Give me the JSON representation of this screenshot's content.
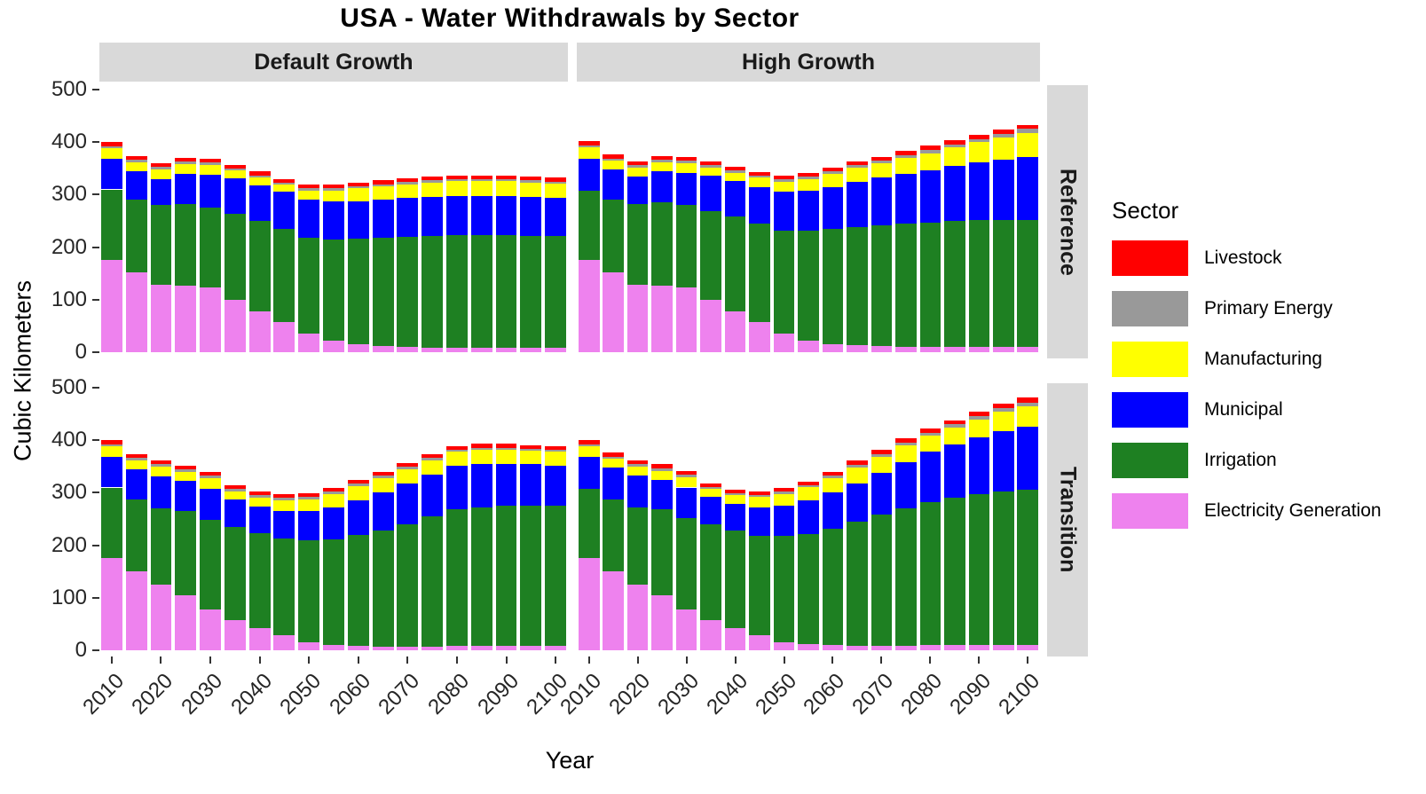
{
  "title": "USA - Water Withdrawals by Sector",
  "axes": {
    "x_title": "Year",
    "y_title": "Cubic Kilometers",
    "y_ticks": [
      0,
      100,
      200,
      300,
      400,
      500
    ],
    "x_ticks": [
      2010,
      2020,
      2030,
      2040,
      2050,
      2060,
      2070,
      2080,
      2090,
      2100
    ]
  },
  "facets": {
    "cols": [
      "Default Growth",
      "High Growth"
    ],
    "rows": [
      "Reference",
      "Transition"
    ]
  },
  "legend": {
    "title": "Sector",
    "items": [
      {
        "label": "Livestock",
        "color": "#FF0000"
      },
      {
        "label": "Primary Energy",
        "color": "#999999"
      },
      {
        "label": "Manufacturing",
        "color": "#FFFF00"
      },
      {
        "label": "Municipal",
        "color": "#0000FF"
      },
      {
        "label": "Irrigation",
        "color": "#1E8022"
      },
      {
        "label": "Electricity Generation",
        "color": "#EE82EE"
      }
    ]
  },
  "chart_data": {
    "type": "bar",
    "stacked": true,
    "title": "USA - Water Withdrawals by Sector",
    "xlabel": "Year",
    "ylabel": "Cubic Kilometers",
    "ylim": [
      0,
      500
    ],
    "grid": false,
    "legend_position": "right",
    "x": [
      2010,
      2015,
      2020,
      2025,
      2030,
      2035,
      2040,
      2045,
      2050,
      2055,
      2060,
      2065,
      2070,
      2075,
      2080,
      2085,
      2090,
      2095,
      2100
    ],
    "stack_order_bottom_to_top": [
      "Electricity Generation",
      "Irrigation",
      "Municipal",
      "Manufacturing",
      "Primary Energy",
      "Livestock"
    ],
    "panels": [
      {
        "row": "Reference",
        "col": "Default Growth",
        "series": {
          "Electricity Generation": [
            175,
            152,
            128,
            126,
            124,
            100,
            78,
            57,
            35,
            22,
            15,
            12,
            10,
            9,
            8,
            8,
            8,
            8,
            8
          ],
          "Irrigation": [
            135,
            138,
            152,
            156,
            152,
            163,
            172,
            178,
            183,
            193,
            201,
            206,
            210,
            213,
            215,
            215,
            215,
            214,
            213
          ],
          "Municipal": [
            58,
            55,
            50,
            58,
            62,
            68,
            68,
            70,
            72,
            72,
            72,
            73,
            74,
            74,
            75,
            75,
            75,
            74,
            73
          ],
          "Manufacturing": [
            20,
            17,
            18,
            18,
            18,
            15,
            15,
            14,
            18,
            21,
            24,
            25,
            26,
            27,
            28,
            28,
            28,
            27,
            27
          ],
          "Primary Energy": [
            4,
            4,
            5,
            5,
            5,
            4,
            4,
            4,
            4,
            4,
            4,
            4,
            4,
            4,
            4,
            4,
            4,
            4,
            4
          ],
          "Livestock": [
            8,
            7,
            7,
            7,
            7,
            7,
            7,
            7,
            7,
            7,
            7,
            7,
            7,
            7,
            7,
            7,
            7,
            7,
            7
          ]
        }
      },
      {
        "row": "Reference",
        "col": "High Growth",
        "series": {
          "Electricity Generation": [
            175,
            152,
            128,
            126,
            124,
            100,
            78,
            57,
            35,
            22,
            16,
            13,
            12,
            11,
            10,
            10,
            10,
            10,
            10
          ],
          "Irrigation": [
            133,
            138,
            154,
            159,
            156,
            168,
            180,
            188,
            197,
            210,
            219,
            225,
            230,
            234,
            237,
            240,
            242,
            242,
            242
          ],
          "Municipal": [
            60,
            58,
            53,
            60,
            62,
            68,
            68,
            70,
            73,
            76,
            80,
            86,
            90,
            95,
            100,
            105,
            110,
            115,
            120
          ],
          "Manufacturing": [
            22,
            17,
            17,
            17,
            18,
            16,
            16,
            17,
            20,
            22,
            25,
            27,
            28,
            30,
            32,
            35,
            38,
            42,
            46
          ],
          "Primary Energy": [
            4,
            4,
            5,
            5,
            5,
            4,
            4,
            4,
            4,
            4,
            5,
            5,
            5,
            5,
            6,
            6,
            6,
            7,
            7
          ],
          "Livestock": [
            8,
            7,
            7,
            7,
            7,
            7,
            7,
            7,
            7,
            7,
            7,
            7,
            7,
            8,
            8,
            8,
            8,
            8,
            8
          ]
        }
      },
      {
        "row": "Transition",
        "col": "Default Growth",
        "series": {
          "Electricity Generation": [
            175,
            150,
            125,
            105,
            78,
            57,
            42,
            28,
            15,
            10,
            8,
            7,
            7,
            7,
            8,
            8,
            8,
            8,
            8
          ],
          "Irrigation": [
            135,
            138,
            146,
            160,
            170,
            178,
            181,
            185,
            195,
            202,
            211,
            221,
            233,
            248,
            260,
            264,
            267,
            268,
            267
          ],
          "Municipal": [
            58,
            57,
            60,
            57,
            60,
            53,
            50,
            53,
            55,
            60,
            67,
            72,
            78,
            80,
            84,
            83,
            80,
            78,
            77
          ],
          "Manufacturing": [
            20,
            17,
            18,
            18,
            20,
            15,
            18,
            20,
            23,
            26,
            27,
            28,
            27,
            27,
            26,
            27,
            27,
            26,
            26
          ],
          "Primary Energy": [
            4,
            4,
            5,
            5,
            5,
            4,
            4,
            4,
            4,
            4,
            4,
            4,
            4,
            4,
            4,
            4,
            4,
            4,
            4
          ],
          "Livestock": [
            8,
            7,
            7,
            7,
            7,
            7,
            7,
            7,
            7,
            7,
            7,
            7,
            7,
            7,
            7,
            7,
            7,
            7,
            7
          ]
        }
      },
      {
        "row": "Transition",
        "col": "High Growth",
        "series": {
          "Electricity Generation": [
            175,
            150,
            125,
            105,
            78,
            57,
            42,
            28,
            15,
            12,
            10,
            9,
            9,
            9,
            10,
            10,
            10,
            10,
            10
          ],
          "Irrigation": [
            133,
            138,
            147,
            163,
            174,
            183,
            186,
            190,
            203,
            210,
            222,
            236,
            249,
            261,
            272,
            280,
            288,
            293,
            296
          ],
          "Municipal": [
            60,
            60,
            60,
            57,
            58,
            52,
            50,
            54,
            57,
            63,
            68,
            73,
            80,
            88,
            96,
            102,
            107,
            115,
            119
          ],
          "Manufacturing": [
            20,
            17,
            18,
            17,
            20,
            15,
            17,
            20,
            23,
            25,
            28,
            30,
            30,
            32,
            30,
            32,
            34,
            36,
            39
          ],
          "Primary Energy": [
            4,
            4,
            5,
            5,
            5,
            4,
            4,
            4,
            4,
            4,
            5,
            5,
            5,
            6,
            6,
            6,
            7,
            7,
            8
          ],
          "Livestock": [
            8,
            7,
            7,
            7,
            7,
            7,
            7,
            7,
            7,
            7,
            7,
            8,
            8,
            8,
            8,
            8,
            8,
            9,
            9
          ]
        }
      }
    ]
  }
}
